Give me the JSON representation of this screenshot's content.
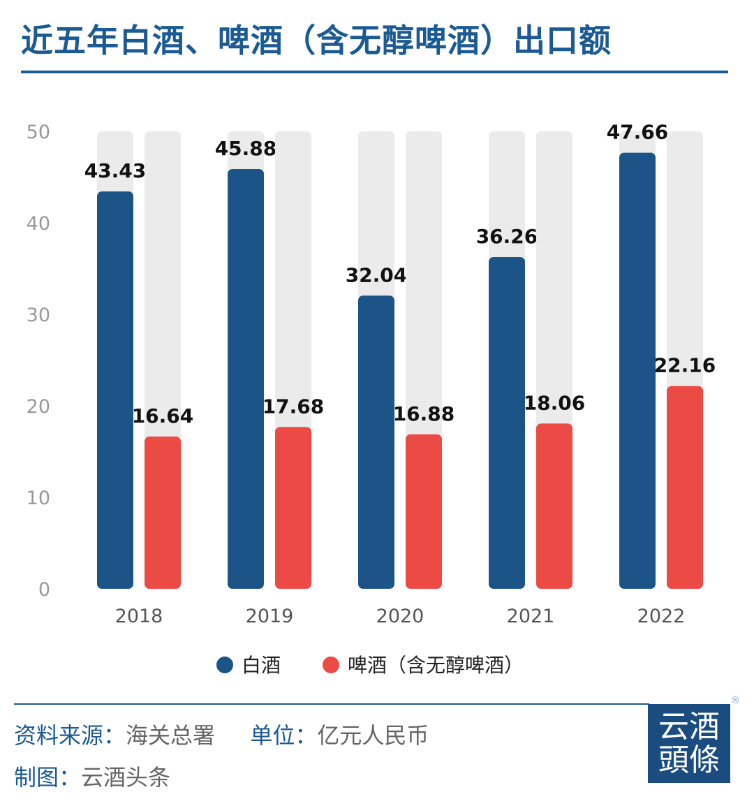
{
  "title": "近五年白酒、啤酒（含无醇啤酒）出口额",
  "chart_data": {
    "type": "bar",
    "title": "近五年白酒、啤酒（含无醇啤酒）出口额",
    "categories": [
      "2018",
      "2019",
      "2020",
      "2021",
      "2022"
    ],
    "series": [
      {
        "name": "白酒",
        "values": [
          43.43,
          45.88,
          32.04,
          36.26,
          47.66
        ],
        "color": "#1c5488"
      },
      {
        "name": "啤酒（含无醇啤酒）",
        "values": [
          16.64,
          17.68,
          16.88,
          18.06,
          22.16
        ],
        "color": "#ec4b45"
      }
    ],
    "yticks": [
      "0",
      "10",
      "20",
      "30",
      "40",
      "50"
    ],
    "ylim": [
      0,
      50
    ],
    "grid": false,
    "background_bar_color": "#ebebeb",
    "legend_position": "bottom"
  },
  "footer": {
    "source_label": "资料来源：",
    "source_value": "海关总署",
    "unit_label": "单位：",
    "unit_value": "亿元人民币",
    "maker_label": "制图：",
    "maker_value": "云酒头条"
  },
  "logo": {
    "line1": "云酒",
    "line2": "頭條",
    "mark": "®"
  }
}
